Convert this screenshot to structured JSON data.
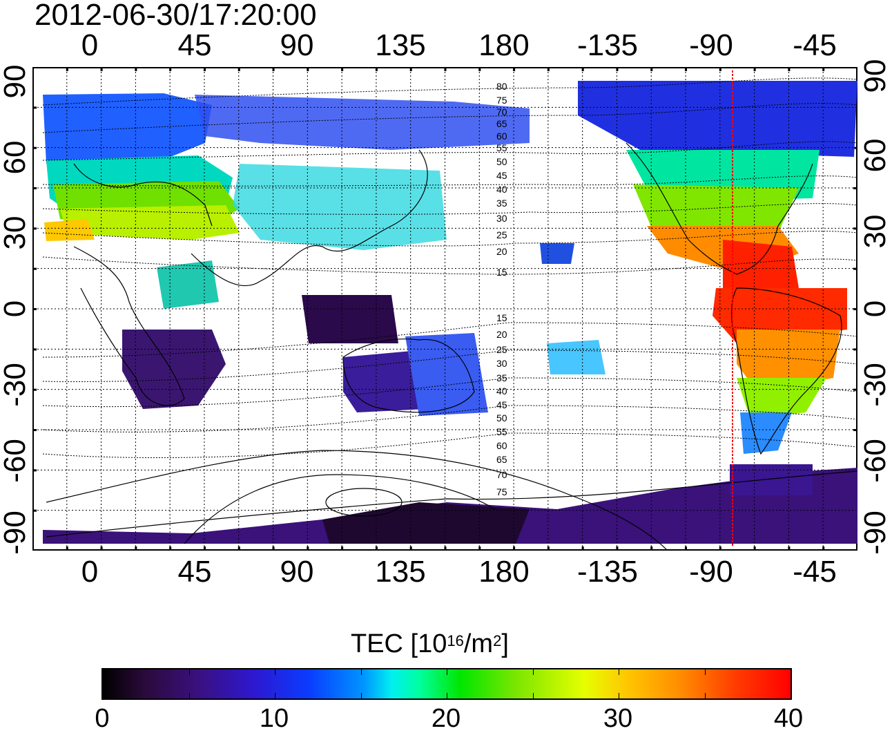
{
  "timestamp": "2012-06-30/17:20:00",
  "axes": {
    "top_lon_labels": [
      "0",
      "45",
      "90",
      "135",
      "180",
      "-135",
      "-90",
      "-45"
    ],
    "bottom_lon_labels": [
      "0",
      "45",
      "90",
      "135",
      "180",
      "-135",
      "-90",
      "-45"
    ],
    "left_lat_labels": [
      "90",
      "60",
      "30",
      "0",
      "-30",
      "-60",
      "-90"
    ],
    "right_lat_labels": [
      "90",
      "60",
      "30",
      "0",
      "-30",
      "-60",
      "-90"
    ]
  },
  "contour_labels_upper": [
    "80",
    "75",
    "70",
    "65",
    "60",
    "55",
    "50",
    "45",
    "40",
    "35",
    "30",
    "25",
    "20",
    "15"
  ],
  "contour_labels_lower": [
    "15",
    "20",
    "25",
    "30",
    "35",
    "40",
    "45",
    "50",
    "55",
    "60",
    "65",
    "70",
    "75"
  ],
  "colorbar": {
    "title_main": "TEC  [10",
    "title_exp": "16",
    "title_mid": "/m",
    "title_exp2": "2",
    "title_end": "]",
    "ticks": [
      "0",
      "10",
      "20",
      "30",
      "40"
    ],
    "range": [
      0,
      40
    ]
  },
  "colors": {
    "low": "#000000",
    "mid": "#00e600",
    "high": "#ff0000",
    "marker_line": "#ff0000"
  },
  "subsolar_marker_lon": -80
}
